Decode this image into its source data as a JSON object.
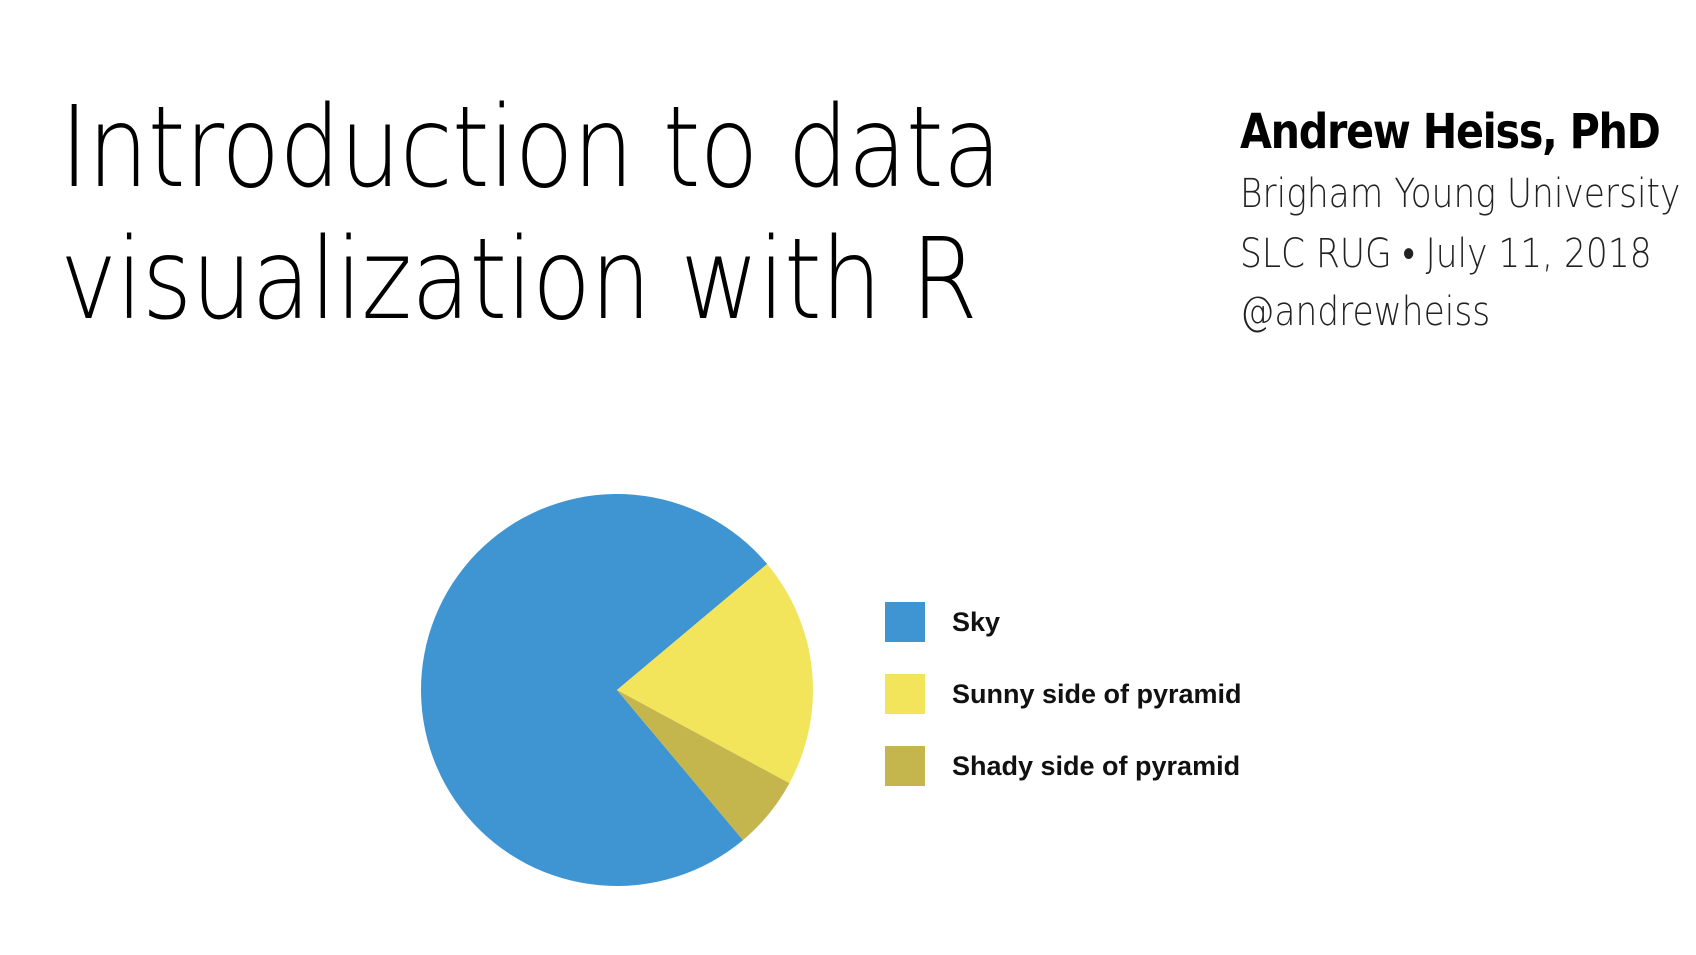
{
  "slide": {
    "title_line1": "Introduction to data",
    "title_line2": "visualization with R",
    "author": "Andrew Heiss, PhD",
    "affiliation": "Brigham Young University",
    "event": "SLC RUG • July 11, 2018",
    "handle": "@andrewheiss"
  },
  "chart_data": {
    "type": "pie",
    "title": "",
    "categories": [
      "Sky",
      "Sunny side of pyramid",
      "Shady side of pyramid"
    ],
    "values": [
      75,
      19,
      6
    ],
    "start_angle_deg": 140,
    "colors": [
      "#3f94d2",
      "#f2e55c",
      "#c4b54d"
    ],
    "legend_position": "right"
  }
}
